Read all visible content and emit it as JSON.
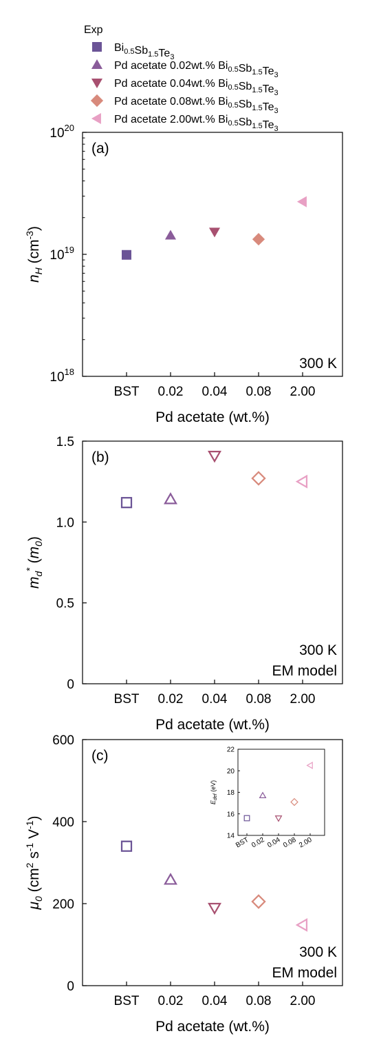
{
  "legend": {
    "title": "Exp",
    "entries": [
      {
        "prefix": "",
        "formula": [
          "Bi",
          "0.5",
          "Sb",
          "1.5",
          "Te",
          "3"
        ],
        "color": "#6b5496",
        "marker": "square"
      },
      {
        "prefix": "Pd acetate 0.02wt.% ",
        "formula": [
          "Bi",
          "0.5",
          "Sb",
          "1.5",
          "Te",
          "3"
        ],
        "color": "#8a5c9a",
        "marker": "triangle-up"
      },
      {
        "prefix": "Pd acetate 0.04wt.% ",
        "formula": [
          "Bi",
          "0.5",
          "Sb",
          "1.5",
          "Te",
          "3"
        ],
        "color": "#a85070",
        "marker": "triangle-down"
      },
      {
        "prefix": "Pd acetate 0.08wt.% ",
        "formula": [
          "Bi",
          "0.5",
          "Sb",
          "1.5",
          "Te",
          "3"
        ],
        "color": "#d88a7c",
        "marker": "diamond"
      },
      {
        "prefix": "Pd acetate 2.00wt.% ",
        "formula": [
          "Bi",
          "0.5",
          "Sb",
          "1.5",
          "Te",
          "3"
        ],
        "color": "#e8a0c4",
        "marker": "triangle-left"
      }
    ]
  },
  "chart_data": [
    {
      "type": "scatter",
      "panel": "(a)",
      "categories": [
        "BST",
        "0.02",
        "0.04",
        "0.08",
        "2.00"
      ],
      "values": [
        9.9e+18,
        1.43e+19,
        1.53e+19,
        1.33e+19,
        2.7e+19
      ],
      "xlabel": "Pd acetate (wt.%)",
      "ylabel_main": "n",
      "ylabel_sub": "H",
      "ylabel_unit": " (cm",
      "ylabel_unit_sup": "-3",
      "ylabel_close": ")",
      "yscale": "log",
      "ylim": [
        1e+18,
        1e+20
      ],
      "yticks": [
        {
          "base": "10",
          "exp": "18",
          "v": 1e+18
        },
        {
          "base": "10",
          "exp": "19",
          "v": 1e+19
        },
        {
          "base": "10",
          "exp": "20",
          "v": 1e+20
        }
      ],
      "filled": true,
      "annotations": [
        "300 K"
      ]
    },
    {
      "type": "scatter",
      "panel": "(b)",
      "categories": [
        "BST",
        "0.02",
        "0.04",
        "0.08",
        "2.00"
      ],
      "values": [
        1.12,
        1.14,
        1.41,
        1.27,
        1.25
      ],
      "xlabel": "Pd acetate (wt.%)",
      "ylabel_main": "m",
      "ylabel_sub": "d",
      "ylabel_sup": "*",
      "ylabel_unit": " (",
      "ylabel_unit_it": "m",
      "ylabel_unit_it_sub": "0",
      "ylabel_close": ")",
      "yscale": "linear",
      "ylim": [
        0,
        1.5
      ],
      "yticks": [
        {
          "label": "0",
          "v": 0
        },
        {
          "label": "0.5",
          "v": 0.5
        },
        {
          "label": "1.0",
          "v": 1.0
        },
        {
          "label": "1.5",
          "v": 1.5
        }
      ],
      "filled": false,
      "annotations": [
        "300 K",
        "EM model"
      ]
    },
    {
      "type": "scatter",
      "panel": "(c)",
      "categories": [
        "BST",
        "0.02",
        "0.04",
        "0.08",
        "2.00"
      ],
      "values": [
        340,
        258,
        190,
        205,
        148
      ],
      "xlabel": "Pd acetate (wt.%)",
      "ylabel_main": "μ",
      "ylabel_sub": "0",
      "ylabel_unit": " (cm",
      "ylabel_unit_sup": "2",
      "ylabel_unit2": " s",
      "ylabel_unit2_sup": "-1",
      "ylabel_unit3": " V",
      "ylabel_unit3_sup": "-1",
      "ylabel_close": ")",
      "yscale": "linear",
      "ylim": [
        0,
        600
      ],
      "yticks": [
        {
          "label": "0",
          "v": 0
        },
        {
          "label": "200",
          "v": 200
        },
        {
          "label": "400",
          "v": 400
        },
        {
          "label": "600",
          "v": 600
        }
      ],
      "filled": false,
      "annotations": [
        "300 K",
        "EM model"
      ],
      "inset": {
        "type": "scatter",
        "categories": [
          "BST",
          "0.02",
          "0.04",
          "0.08",
          "2.00"
        ],
        "values": [
          15.6,
          17.7,
          15.6,
          17.1,
          20.5
        ],
        "ylabel_main": "E",
        "ylabel_sub": "def",
        "ylabel_unit": " (eV)",
        "ylim": [
          14,
          22
        ],
        "yticks": [
          {
            "label": "14",
            "v": 14
          },
          {
            "label": "16",
            "v": 16
          },
          {
            "label": "18",
            "v": 18
          },
          {
            "label": "20",
            "v": 20
          },
          {
            "label": "22",
            "v": 22
          }
        ],
        "filled": false
      }
    }
  ]
}
